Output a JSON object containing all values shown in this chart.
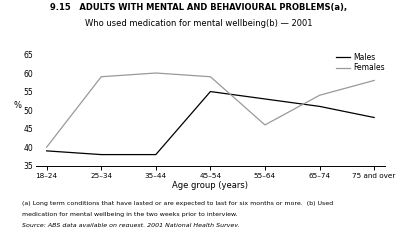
{
  "title_line1": "9.15   ADULTS WITH MENTAL AND BEHAVIOURAL PROBLEMS(a),",
  "title_line2": "Who used medication for mental wellbeing(b) — 2001",
  "xlabel": "Age group (years)",
  "ylabel": "%",
  "age_groups": [
    "18–24",
    "25–34",
    "35–44",
    "45–54",
    "55–64",
    "65–74",
    "75 and over"
  ],
  "males": [
    39,
    38,
    38,
    55,
    53,
    51,
    48
  ],
  "females": [
    40,
    59,
    60,
    59,
    46,
    54,
    58
  ],
  "males_color": "#000000",
  "females_color": "#999999",
  "ylim": [
    35,
    65
  ],
  "yticks": [
    35,
    40,
    45,
    50,
    55,
    60,
    65
  ],
  "footnote1": "(a) Long term conditions that have lasted or are expected to last for six months or more.  (b) Used",
  "footnote2": "medication for mental wellbeing in the two weeks prior to interview.",
  "source": "Source: ABS data available on request, 2001 National Health Survey.",
  "bg_color": "#ffffff"
}
